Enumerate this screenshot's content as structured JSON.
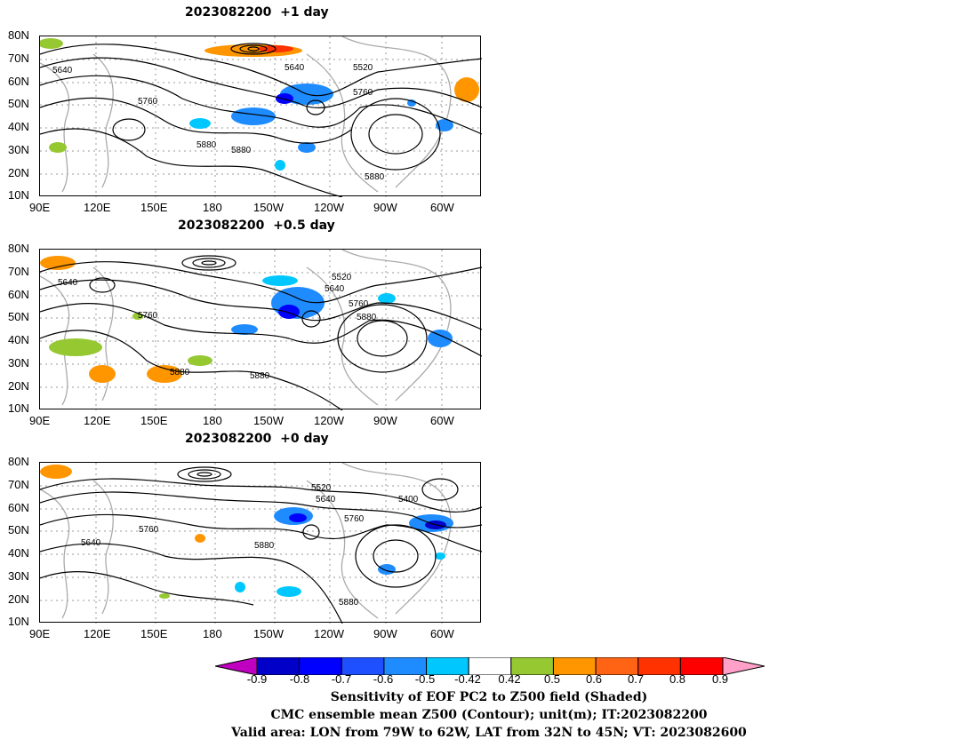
{
  "panels": [
    {
      "title": "2023082200  +1 day",
      "contour_labels": [
        "5640",
        "5640",
        "5520",
        "5760",
        "5760",
        "5880",
        "5880",
        "5880"
      ]
    },
    {
      "title": "2023082200  +0.5 day",
      "contour_labels": [
        "5640",
        "5520",
        "5640",
        "5760",
        "5760",
        "5880",
        "5880",
        "5880"
      ]
    },
    {
      "title": "2023082200  +0 day",
      "contour_labels": [
        "5520",
        "5400",
        "5640",
        "5760",
        "5640",
        "5760",
        "5880",
        "5880"
      ]
    }
  ],
  "lat_ticks": [
    "80N",
    "70N",
    "60N",
    "50N",
    "40N",
    "30N",
    "20N",
    "10N"
  ],
  "lon_ticks": [
    "90E",
    "120E",
    "150E",
    "180",
    "150W",
    "120W",
    "90W",
    "60W"
  ],
  "colorbar": {
    "labels": [
      "-0.9",
      "-0.8",
      "-0.7",
      "-0.6",
      "-0.5",
      "-0.42",
      "0.42",
      "0.5",
      "0.6",
      "0.7",
      "0.8",
      "0.9"
    ],
    "colors": [
      "#c000c0",
      "#0000c8",
      "#0000ff",
      "#1e50ff",
      "#1e8cff",
      "#00c8ff",
      "#ffffff",
      "#96c832",
      "#ff9600",
      "#ff6414",
      "#ff3200",
      "#ff0000",
      "#ffa0c8"
    ]
  },
  "caption": {
    "line1": "Sensitivity of EOF PC2 to Z500 field (Shaded)",
    "line2": "CMC ensemble mean Z500 (Contour); unit(m); IT:2023082200",
    "line3": "Valid area: LON from 79W to 62W, LAT from 32N to 45N; VT: 2023082600"
  }
}
